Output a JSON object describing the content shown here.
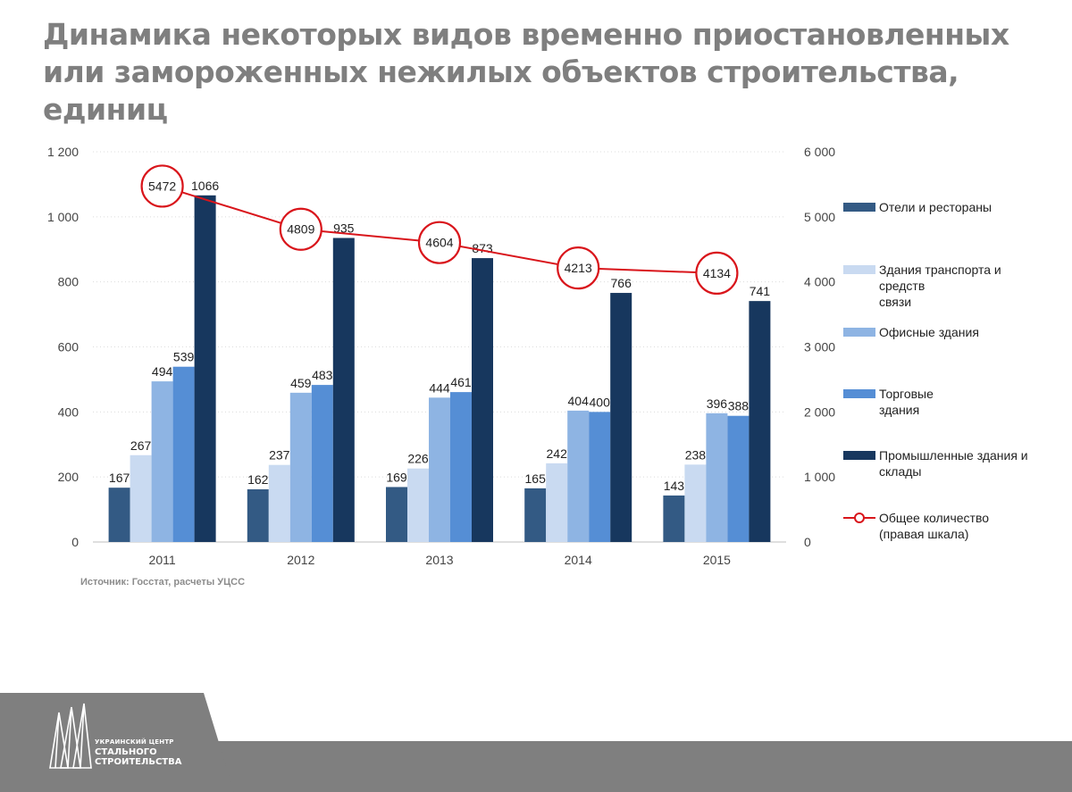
{
  "title": "Динамика некоторых видов временно приостановленных или замороженных нежилых объектов строительства, единиц",
  "source": "Источник: Госстат, расчеты УЦСС",
  "logo": {
    "line1": "УКРАИНСКИЙ ЦЕНТР",
    "line2": "СТАЛЬНОГО",
    "line3": "СТРОИТЕЛЬСТВА",
    "icon": "building-logo-icon"
  },
  "colors": {
    "hotels": "#335a84",
    "transport": "#c9daf1",
    "offices": "#8eb4e3",
    "trade": "#558ed5",
    "industrial": "#17375e",
    "total": "#d9151b"
  },
  "chart_data": {
    "type": "bar",
    "title": "Динамика некоторых видов временно приостановленных или замороженных нежилых объектов строительства, единиц",
    "categories": [
      "2011",
      "2012",
      "2013",
      "2014",
      "2015"
    ],
    "ylim": [
      0,
      1200
    ],
    "y_ticks": [
      "0",
      "200",
      "400",
      "600",
      "800",
      "1 000",
      "1 200"
    ],
    "y2lim": [
      0,
      6000
    ],
    "y2_ticks": [
      "0",
      "1 000",
      "2 000",
      "3 000",
      "4 000",
      "5 000",
      "6 000"
    ],
    "grid": true,
    "legend_position": "right",
    "series": [
      {
        "key": "hotels",
        "name": "Отели и рестораны",
        "legend_lines": [
          "Отели и рестораны"
        ],
        "values": [
          167,
          162,
          169,
          165,
          143
        ]
      },
      {
        "key": "transport",
        "name": "Здания транспорта и средств связи",
        "legend_lines": [
          "Здания транспорта и",
          "средств",
          "связи"
        ],
        "values": [
          267,
          237,
          226,
          242,
          238
        ]
      },
      {
        "key": "offices",
        "name": "Офисные здания",
        "legend_lines": [
          "Офисные здания"
        ],
        "values": [
          494,
          459,
          444,
          404,
          396
        ]
      },
      {
        "key": "trade",
        "name": "Торговые здания",
        "legend_lines": [
          "Торговые",
          "здания"
        ],
        "values": [
          539,
          483,
          461,
          400,
          388
        ]
      },
      {
        "key": "industrial",
        "name": "Промышленные здания и склады",
        "legend_lines": [
          "Промышленные здания и",
          "склады"
        ],
        "values": [
          1066,
          935,
          873,
          766,
          741
        ]
      }
    ],
    "line_series": {
      "key": "total",
      "name": "Общее количество (правая шкала)",
      "legend_lines": [
        "Общее количество",
        "(правая шкала)"
      ],
      "axis": "right",
      "values": [
        5472,
        4809,
        4604,
        4213,
        4134
      ]
    }
  }
}
